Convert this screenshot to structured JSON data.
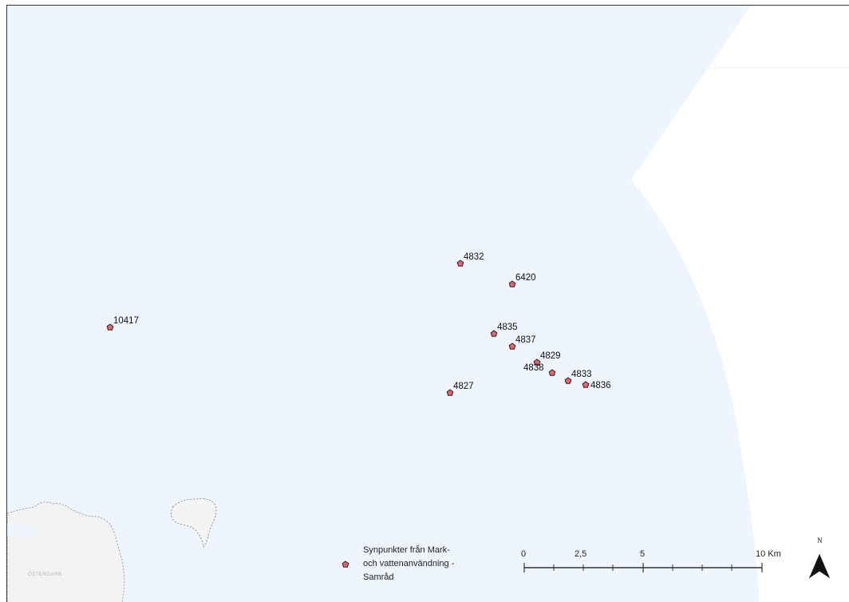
{
  "map": {
    "points": [
      {
        "id": "4832",
        "label": "4832"
      },
      {
        "id": "6420",
        "label": "6420"
      },
      {
        "id": "10417",
        "label": "10417"
      },
      {
        "id": "4835",
        "label": "4835"
      },
      {
        "id": "4837",
        "label": "4837"
      },
      {
        "id": "4829",
        "label": "4829"
      },
      {
        "id": "4838",
        "label": "4838"
      },
      {
        "id": "4833",
        "label": "4833"
      },
      {
        "id": "4836",
        "label": "4836"
      },
      {
        "id": "4827",
        "label": "4827"
      }
    ],
    "place_labels": {
      "ostergarn": "ÖSTERGARN"
    },
    "legend": {
      "line1": "Synpunkter från Mark-",
      "line2": "och vattenanvändning -",
      "line3": "Samråd"
    },
    "scale_bar": {
      "tick_0": "0",
      "tick_1": "2,5",
      "tick_2": "5",
      "tick_3": "10 Km"
    },
    "north_arrow": {
      "label": "N"
    },
    "colors": {
      "water": "#eef5ff",
      "land": "#f2f2f2",
      "marker_fill": "#e8646e",
      "marker_stroke": "#222222",
      "frame": "#333333"
    }
  }
}
